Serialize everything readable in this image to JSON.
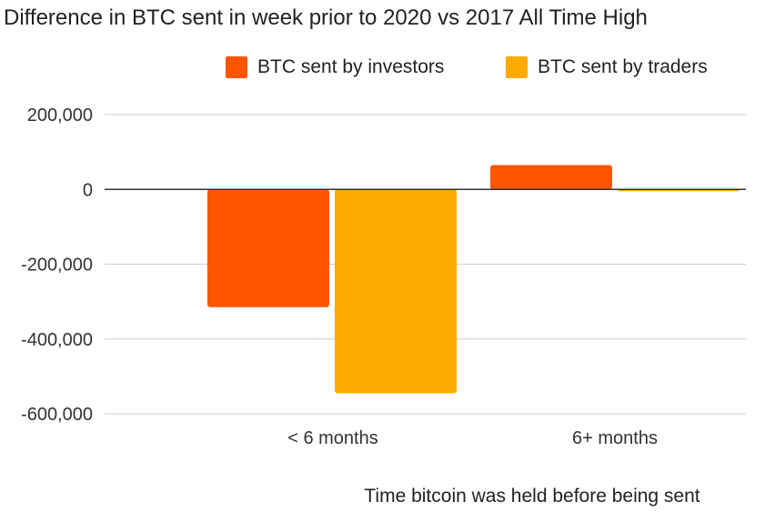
{
  "chart_data": {
    "type": "bar",
    "title": "Difference in BTC sent in week prior to 2020 vs 2017 All Time High",
    "xlabel": "Time bitcoin was held before being sent",
    "ylabel": "",
    "categories": [
      "< 6 months",
      "6+ months"
    ],
    "series": [
      {
        "name": "BTC sent by investors",
        "color": "#ff5500",
        "values": [
          -315000,
          65000
        ]
      },
      {
        "name": "BTC sent by traders",
        "color": "#ffaa00",
        "values": [
          -545000,
          -3000
        ]
      }
    ],
    "ylim": [
      -600000,
      200000
    ],
    "yticks": [
      200000,
      0,
      -200000,
      -400000,
      -600000
    ],
    "ytick_labels": [
      "200,000",
      "0",
      "-200,000",
      "-400,000",
      "-600,000"
    ],
    "grid": true,
    "legend_position": "top-right"
  }
}
